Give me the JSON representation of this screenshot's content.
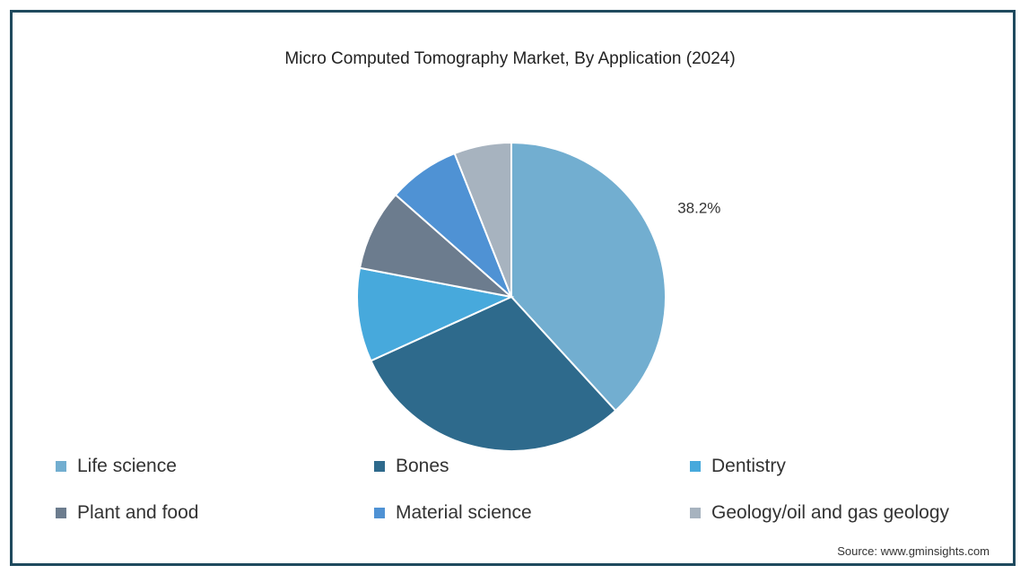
{
  "chart_data": {
    "type": "pie",
    "title": "Micro Computed Tomography Market, By Application (2024)",
    "categories": [
      "Life science",
      "Bones",
      "Dentistry",
      "Plant and food",
      "Material science",
      "Geology/oil and gas geology"
    ],
    "values": [
      38.2,
      30.0,
      9.8,
      8.5,
      7.5,
      6.0
    ],
    "colors": [
      "#72aed0",
      "#2e6a8c",
      "#47a9dc",
      "#6c7c8e",
      "#4f92d4",
      "#a7b3bf"
    ],
    "data_labels": [
      "38.2%",
      "",
      "",
      "",
      "",
      ""
    ],
    "legend_position": "bottom",
    "source": "Source: www.gminsights.com"
  }
}
